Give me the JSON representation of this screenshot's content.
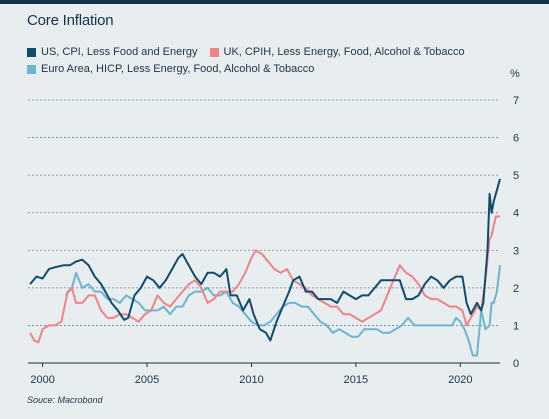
{
  "title": "Core Inflation",
  "source": "Souce: Macrobond",
  "chart_data": {
    "type": "line",
    "title": "Core Inflation",
    "ylabel": "%",
    "xlabel": "",
    "ylim": [
      0,
      7
    ],
    "xlim": [
      1999.3,
      2021.9
    ],
    "y_ticks": [
      0,
      1,
      2,
      3,
      4,
      5,
      6,
      7
    ],
    "x_ticks": [
      2000,
      2005,
      2010,
      2015,
      2020
    ],
    "grid": true,
    "legend_position": "top-left",
    "series": [
      {
        "name": "US, CPI, Less Food and Energy",
        "color": "#0f4c6c",
        "points": [
          [
            1999.4,
            2.1
          ],
          [
            1999.7,
            2.3
          ],
          [
            2000.0,
            2.25
          ],
          [
            2000.3,
            2.5
          ],
          [
            2000.6,
            2.55
          ],
          [
            2001.0,
            2.6
          ],
          [
            2001.3,
            2.6
          ],
          [
            2001.6,
            2.7
          ],
          [
            2001.9,
            2.75
          ],
          [
            2002.2,
            2.6
          ],
          [
            2002.5,
            2.3
          ],
          [
            2002.8,
            2.1
          ],
          [
            2003.0,
            1.9
          ],
          [
            2003.3,
            1.6
          ],
          [
            2003.6,
            1.4
          ],
          [
            2003.9,
            1.15
          ],
          [
            2004.1,
            1.2
          ],
          [
            2004.4,
            1.8
          ],
          [
            2004.7,
            2.0
          ],
          [
            2005.0,
            2.3
          ],
          [
            2005.3,
            2.2
          ],
          [
            2005.6,
            2.0
          ],
          [
            2005.9,
            2.2
          ],
          [
            2006.2,
            2.5
          ],
          [
            2006.5,
            2.8
          ],
          [
            2006.7,
            2.9
          ],
          [
            2007.0,
            2.6
          ],
          [
            2007.3,
            2.3
          ],
          [
            2007.6,
            2.1
          ],
          [
            2007.9,
            2.4
          ],
          [
            2008.2,
            2.4
          ],
          [
            2008.5,
            2.3
          ],
          [
            2008.8,
            2.5
          ],
          [
            2009.0,
            1.8
          ],
          [
            2009.3,
            1.8
          ],
          [
            2009.6,
            1.4
          ],
          [
            2009.9,
            1.7
          ],
          [
            2010.1,
            1.3
          ],
          [
            2010.4,
            0.9
          ],
          [
            2010.7,
            0.8
          ],
          [
            2010.9,
            0.6
          ],
          [
            2011.2,
            1.1
          ],
          [
            2011.5,
            1.5
          ],
          [
            2011.8,
            1.9
          ],
          [
            2012.0,
            2.2
          ],
          [
            2012.3,
            2.3
          ],
          [
            2012.6,
            1.9
          ],
          [
            2012.9,
            1.9
          ],
          [
            2013.2,
            1.7
          ],
          [
            2013.5,
            1.7
          ],
          [
            2013.8,
            1.7
          ],
          [
            2014.1,
            1.6
          ],
          [
            2014.4,
            1.9
          ],
          [
            2014.7,
            1.8
          ],
          [
            2015.0,
            1.7
          ],
          [
            2015.3,
            1.8
          ],
          [
            2015.6,
            1.8
          ],
          [
            2015.9,
            2.0
          ],
          [
            2016.2,
            2.2
          ],
          [
            2016.5,
            2.2
          ],
          [
            2016.8,
            2.2
          ],
          [
            2017.1,
            2.2
          ],
          [
            2017.4,
            1.7
          ],
          [
            2017.7,
            1.7
          ],
          [
            2018.0,
            1.8
          ],
          [
            2018.3,
            2.1
          ],
          [
            2018.6,
            2.3
          ],
          [
            2018.9,
            2.2
          ],
          [
            2019.2,
            2.0
          ],
          [
            2019.5,
            2.2
          ],
          [
            2019.8,
            2.3
          ],
          [
            2020.1,
            2.3
          ],
          [
            2020.3,
            1.6
          ],
          [
            2020.5,
            1.3
          ],
          [
            2020.8,
            1.6
          ],
          [
            2021.0,
            1.4
          ],
          [
            2021.1,
            1.6
          ],
          [
            2021.3,
            3.0
          ],
          [
            2021.4,
            4.5
          ],
          [
            2021.5,
            4.0
          ],
          [
            2021.6,
            4.3
          ],
          [
            2021.75,
            4.6
          ],
          [
            2021.9,
            4.9
          ]
        ]
      },
      {
        "name": "UK, CPIH, Less Energy, Food, Alcohol & Tobacco",
        "color": "#ee8487",
        "points": [
          [
            1999.4,
            0.8
          ],
          [
            1999.6,
            0.6
          ],
          [
            1999.8,
            0.55
          ],
          [
            2000.0,
            0.9
          ],
          [
            2000.3,
            1.0
          ],
          [
            2000.6,
            1.0
          ],
          [
            2000.9,
            1.1
          ],
          [
            2001.2,
            1.9
          ],
          [
            2001.4,
            2.0
          ],
          [
            2001.6,
            1.6
          ],
          [
            2001.9,
            1.6
          ],
          [
            2002.2,
            1.8
          ],
          [
            2002.5,
            1.8
          ],
          [
            2002.8,
            1.4
          ],
          [
            2003.1,
            1.2
          ],
          [
            2003.4,
            1.2
          ],
          [
            2003.7,
            1.3
          ],
          [
            2004.0,
            1.3
          ],
          [
            2004.3,
            1.2
          ],
          [
            2004.6,
            1.1
          ],
          [
            2004.9,
            1.3
          ],
          [
            2005.2,
            1.4
          ],
          [
            2005.5,
            1.8
          ],
          [
            2005.8,
            1.6
          ],
          [
            2006.1,
            1.5
          ],
          [
            2006.4,
            1.7
          ],
          [
            2006.7,
            1.9
          ],
          [
            2007.0,
            2.1
          ],
          [
            2007.3,
            2.2
          ],
          [
            2007.6,
            2.0
          ],
          [
            2007.9,
            1.6
          ],
          [
            2008.2,
            1.7
          ],
          [
            2008.5,
            1.9
          ],
          [
            2008.8,
            1.9
          ],
          [
            2009.1,
            1.9
          ],
          [
            2009.4,
            2.1
          ],
          [
            2009.7,
            2.4
          ],
          [
            2010.0,
            2.8
          ],
          [
            2010.2,
            3.0
          ],
          [
            2010.5,
            2.9
          ],
          [
            2010.8,
            2.7
          ],
          [
            2011.1,
            2.5
          ],
          [
            2011.4,
            2.4
          ],
          [
            2011.7,
            2.5
          ],
          [
            2012.0,
            2.2
          ],
          [
            2012.3,
            2.1
          ],
          [
            2012.6,
            2.0
          ],
          [
            2012.9,
            1.8
          ],
          [
            2013.2,
            1.7
          ],
          [
            2013.5,
            1.6
          ],
          [
            2013.8,
            1.5
          ],
          [
            2014.1,
            1.5
          ],
          [
            2014.4,
            1.3
          ],
          [
            2014.7,
            1.3
          ],
          [
            2015.0,
            1.2
          ],
          [
            2015.3,
            1.1
          ],
          [
            2015.6,
            1.2
          ],
          [
            2015.9,
            1.3
          ],
          [
            2016.2,
            1.4
          ],
          [
            2016.5,
            1.8
          ],
          [
            2016.8,
            2.2
          ],
          [
            2017.1,
            2.6
          ],
          [
            2017.4,
            2.4
          ],
          [
            2017.7,
            2.3
          ],
          [
            2018.0,
            2.1
          ],
          [
            2018.3,
            1.8
          ],
          [
            2018.6,
            1.7
          ],
          [
            2018.9,
            1.7
          ],
          [
            2019.2,
            1.6
          ],
          [
            2019.5,
            1.5
          ],
          [
            2019.8,
            1.5
          ],
          [
            2020.1,
            1.4
          ],
          [
            2020.3,
            1.0
          ],
          [
            2020.5,
            1.2
          ],
          [
            2020.8,
            1.5
          ],
          [
            2021.0,
            1.4
          ],
          [
            2021.2,
            2.2
          ],
          [
            2021.4,
            3.3
          ],
          [
            2021.5,
            3.4
          ],
          [
            2021.7,
            3.9
          ],
          [
            2021.9,
            3.9
          ]
        ]
      },
      {
        "name": "Euro Area, HICP, Less Energy, Food, Alcohol & Tobacco",
        "color": "#6cb5cf",
        "points": [
          [
            2001.1,
            1.8
          ],
          [
            2001.4,
            2.0
          ],
          [
            2001.6,
            2.4
          ],
          [
            2001.9,
            2.0
          ],
          [
            2002.2,
            2.1
          ],
          [
            2002.5,
            1.9
          ],
          [
            2002.8,
            1.9
          ],
          [
            2003.1,
            1.7
          ],
          [
            2003.4,
            1.7
          ],
          [
            2003.7,
            1.6
          ],
          [
            2004.0,
            1.8
          ],
          [
            2004.3,
            1.7
          ],
          [
            2004.6,
            1.6
          ],
          [
            2004.9,
            1.4
          ],
          [
            2005.2,
            1.4
          ],
          [
            2005.5,
            1.4
          ],
          [
            2005.8,
            1.5
          ],
          [
            2006.1,
            1.3
          ],
          [
            2006.4,
            1.5
          ],
          [
            2006.7,
            1.5
          ],
          [
            2007.0,
            1.8
          ],
          [
            2007.3,
            1.9
          ],
          [
            2007.6,
            1.9
          ],
          [
            2007.9,
            2.0
          ],
          [
            2008.2,
            1.8
          ],
          [
            2008.5,
            1.8
          ],
          [
            2008.8,
            1.9
          ],
          [
            2009.1,
            1.6
          ],
          [
            2009.4,
            1.5
          ],
          [
            2009.7,
            1.3
          ],
          [
            2010.0,
            1.1
          ],
          [
            2010.3,
            1.0
          ],
          [
            2010.6,
            1.0
          ],
          [
            2010.9,
            1.1
          ],
          [
            2011.2,
            1.3
          ],
          [
            2011.5,
            1.5
          ],
          [
            2011.8,
            1.6
          ],
          [
            2012.1,
            1.6
          ],
          [
            2012.4,
            1.5
          ],
          [
            2012.7,
            1.5
          ],
          [
            2013.0,
            1.3
          ],
          [
            2013.3,
            1.1
          ],
          [
            2013.6,
            1.0
          ],
          [
            2013.9,
            0.8
          ],
          [
            2014.2,
            0.9
          ],
          [
            2014.5,
            0.8
          ],
          [
            2014.8,
            0.7
          ],
          [
            2015.1,
            0.7
          ],
          [
            2015.4,
            0.9
          ],
          [
            2015.7,
            0.9
          ],
          [
            2016.0,
            0.9
          ],
          [
            2016.3,
            0.8
          ],
          [
            2016.6,
            0.8
          ],
          [
            2016.9,
            0.9
          ],
          [
            2017.2,
            1.0
          ],
          [
            2017.5,
            1.2
          ],
          [
            2017.8,
            1.0
          ],
          [
            2018.1,
            1.0
          ],
          [
            2018.4,
            1.0
          ],
          [
            2018.7,
            1.0
          ],
          [
            2019.0,
            1.0
          ],
          [
            2019.3,
            1.0
          ],
          [
            2019.6,
            1.0
          ],
          [
            2019.8,
            1.2
          ],
          [
            2020.0,
            1.1
          ],
          [
            2020.2,
            0.9
          ],
          [
            2020.4,
            0.6
          ],
          [
            2020.6,
            0.2
          ],
          [
            2020.8,
            0.2
          ],
          [
            2021.0,
            1.4
          ],
          [
            2021.2,
            0.9
          ],
          [
            2021.4,
            1.0
          ],
          [
            2021.5,
            1.6
          ],
          [
            2021.6,
            1.6
          ],
          [
            2021.75,
            1.9
          ],
          [
            2021.9,
            2.6
          ]
        ]
      }
    ]
  }
}
